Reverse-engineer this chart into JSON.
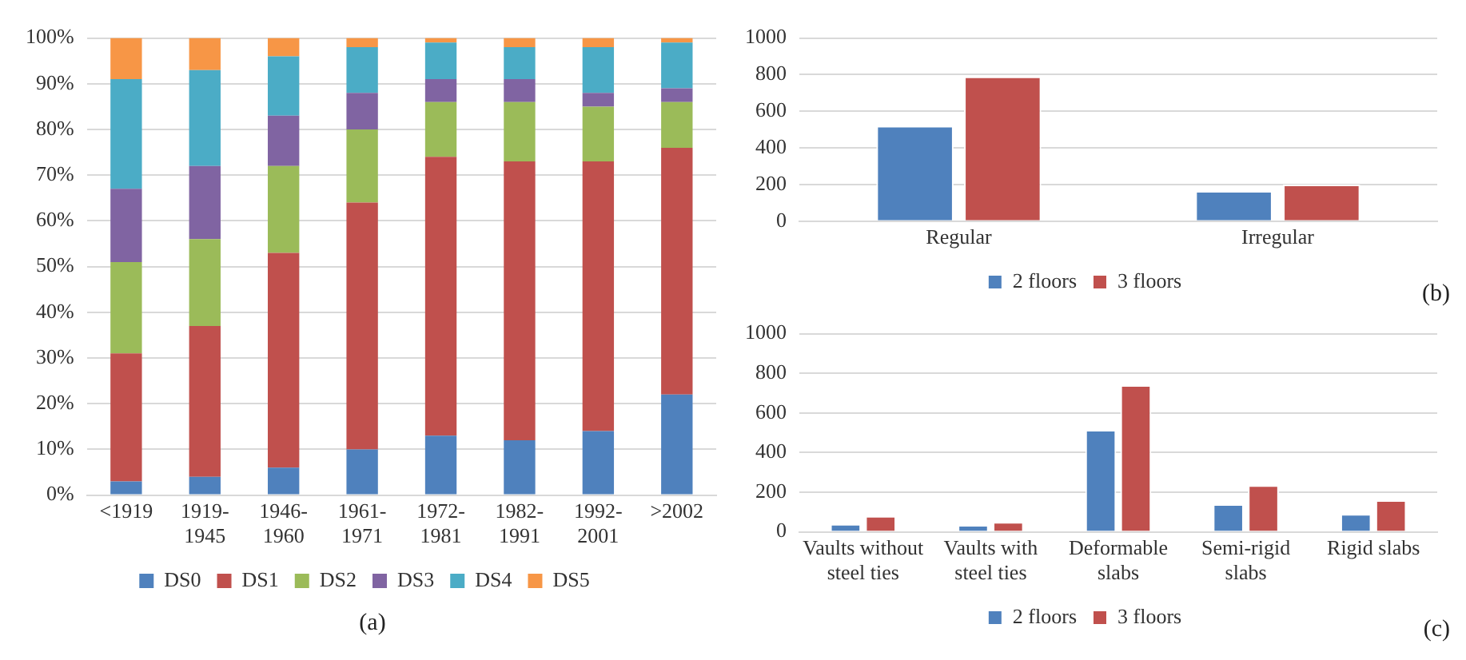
{
  "chart_data": [
    {
      "type": "bar",
      "stacked": true,
      "categories": [
        "<1919",
        "1919-1945",
        "1946-1960",
        "1961-1971",
        "1972-1981",
        "1982-1991",
        "1992-2001",
        ">2002"
      ],
      "series": [
        {
          "name": "DS0",
          "color": "#4f81bd",
          "values": [
            3,
            4,
            6,
            10,
            13,
            12,
            14,
            22
          ]
        },
        {
          "name": "DS1",
          "color": "#c0504d",
          "values": [
            28,
            33,
            47,
            54,
            61,
            61,
            59,
            54
          ]
        },
        {
          "name": "DS2",
          "color": "#9bbb59",
          "values": [
            20,
            19,
            19,
            16,
            12,
            13,
            12,
            10
          ]
        },
        {
          "name": "DS3",
          "color": "#8064a2",
          "values": [
            16,
            16,
            11,
            8,
            5,
            5,
            3,
            3
          ]
        },
        {
          "name": "DS4",
          "color": "#4bacc6",
          "values": [
            24,
            21,
            13,
            10,
            8,
            7,
            10,
            10
          ]
        },
        {
          "name": "DS5",
          "color": "#f79646",
          "values": [
            9,
            7,
            4,
            2,
            1,
            2,
            2,
            1
          ]
        }
      ],
      "ylim": [
        0,
        100
      ],
      "yticks": [
        {
          "value": 0,
          "label": "0%"
        },
        {
          "value": 10,
          "label": "10%"
        },
        {
          "value": 20,
          "label": "20%"
        },
        {
          "value": 30,
          "label": "30%"
        },
        {
          "value": 40,
          "label": "40%"
        },
        {
          "value": 50,
          "label": "50%"
        },
        {
          "value": 60,
          "label": "60%"
        },
        {
          "value": 70,
          "label": "70%"
        },
        {
          "value": 80,
          "label": "80%"
        },
        {
          "value": 90,
          "label": "90%"
        },
        {
          "value": 100,
          "label": "100%"
        }
      ],
      "grid": "y",
      "legend": "bottom",
      "annotations": [
        "(a)"
      ]
    },
    {
      "type": "bar",
      "categories": [
        "Regular",
        "Irregular"
      ],
      "series": [
        {
          "name": "2 floors",
          "color": "#4f81bd",
          "values": [
            520,
            165
          ]
        },
        {
          "name": "3 floors",
          "color": "#c0504d",
          "values": [
            790,
            200
          ]
        }
      ],
      "ylim": [
        0,
        1000
      ],
      "yticks": [
        0,
        200,
        400,
        600,
        800,
        1000
      ],
      "grid": "y",
      "legend": "bottom",
      "annotations": [
        "(b)"
      ]
    },
    {
      "type": "bar",
      "categories": [
        "Vaults without steel ties",
        "Vaults with steel ties",
        "Deformable slabs",
        "Semi-rigid slabs",
        "Rigid slabs"
      ],
      "series": [
        {
          "name": "2 floors",
          "color": "#4f81bd",
          "values": [
            40,
            35,
            515,
            140,
            90
          ]
        },
        {
          "name": "3 floors",
          "color": "#c0504d",
          "values": [
            80,
            50,
            740,
            235,
            160
          ]
        }
      ],
      "ylim": [
        0,
        1000
      ],
      "yticks": [
        0,
        200,
        400,
        600,
        800,
        1000
      ],
      "grid": "y",
      "legend": "bottom",
      "annotations": [
        "(c)"
      ]
    }
  ]
}
